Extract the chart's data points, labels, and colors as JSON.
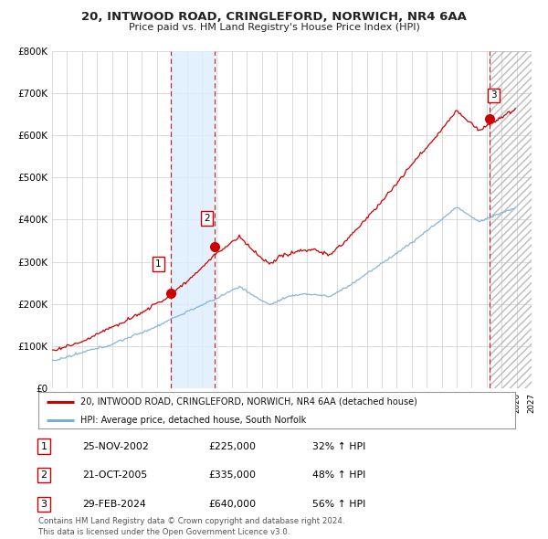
{
  "title1": "20, INTWOOD ROAD, CRINGLEFORD, NORWICH, NR4 6AA",
  "title2": "Price paid vs. HM Land Registry's House Price Index (HPI)",
  "legend_line1": "20, INTWOOD ROAD, CRINGLEFORD, NORWICH, NR4 6AA (detached house)",
  "legend_line2": "HPI: Average price, detached house, South Norfolk",
  "sale1_label": "1",
  "sale1_date": "25-NOV-2002",
  "sale1_price": "£225,000",
  "sale1_hpi": "32% ↑ HPI",
  "sale2_label": "2",
  "sale2_date": "21-OCT-2005",
  "sale2_price": "£335,000",
  "sale2_hpi": "48% ↑ HPI",
  "sale3_label": "3",
  "sale3_date": "29-FEB-2024",
  "sale3_price": "£640,000",
  "sale3_hpi": "56% ↑ HPI",
  "footer": "Contains HM Land Registry data © Crown copyright and database right 2024.\nThis data is licensed under the Open Government Licence v3.0.",
  "red_color": "#cc0000",
  "blue_color": "#7aaed6",
  "bg_color": "#ffffff",
  "grid_color": "#cccccc",
  "sale1_year": 2002.9,
  "sale2_year": 2005.83,
  "sale3_year": 2024.17,
  "sale1_val": 225000,
  "sale2_val": 335000,
  "sale3_val": 640000,
  "ylim_max": 800000,
  "xmin": 1995,
  "xmax": 2027
}
